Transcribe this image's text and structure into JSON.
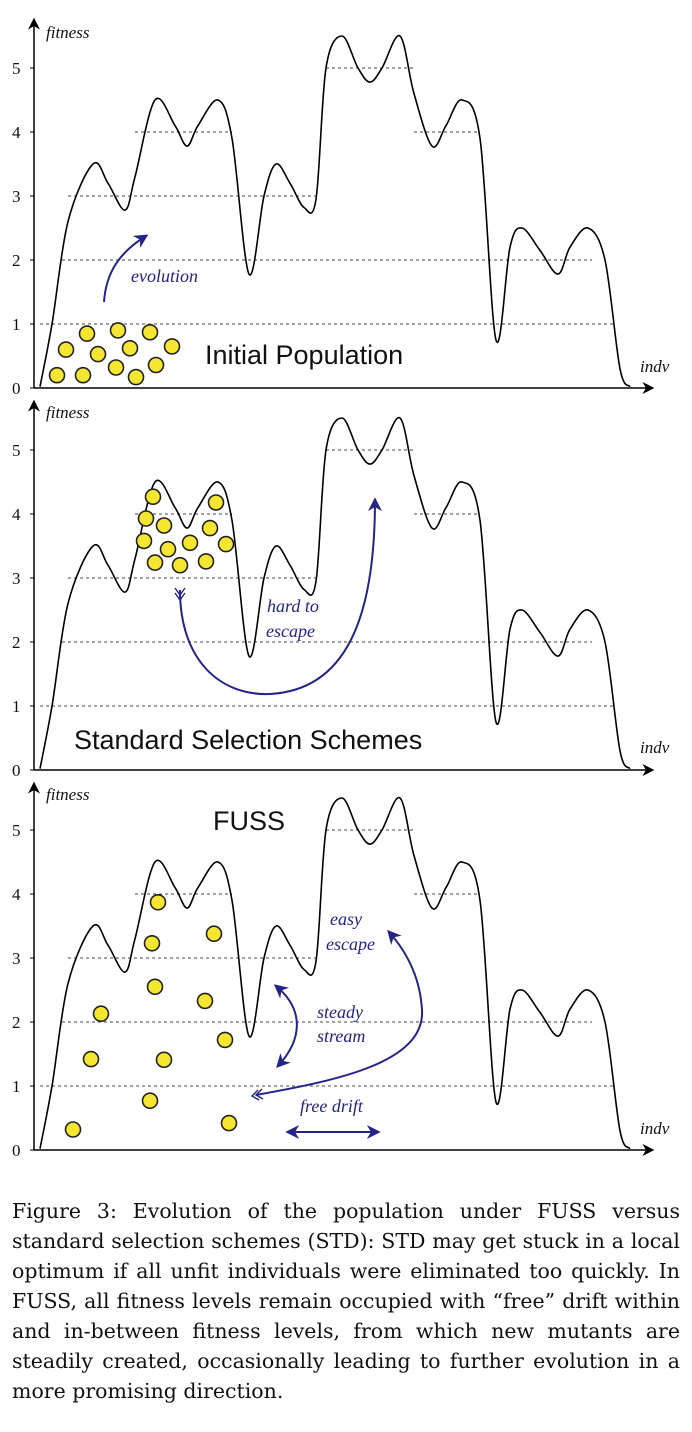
{
  "colors": {
    "individual_fill": "#f5e631",
    "individual_stroke": "#222222",
    "arrow": "#23238a",
    "curve": "#000000",
    "grid": "#444444"
  },
  "axes": {
    "y_label": "fitness",
    "x_label": "indv",
    "y_ticks": [
      "0",
      "1",
      "2",
      "3",
      "4",
      "5"
    ]
  },
  "panels": [
    {
      "title": "Initial Population",
      "annotations": [
        "evolution"
      ]
    },
    {
      "title": "Standard Selection Schemes",
      "annotations": [
        "hard to",
        "escape"
      ]
    },
    {
      "title": "FUSS",
      "annotations": [
        "easy",
        "escape",
        "steady",
        "stream",
        "free drift"
      ]
    }
  ],
  "caption": "Figure 3: Evolution of the population under FUSS versus standard selection schemes (STD): STD may get stuck in a local optimum if all unfit individuals were eliminated too quickly. In FUSS, all fitness levels remain occupied with “free” drift within and in-between fitness levels, from which new mutants are steadily created, occasionally leading to further evolution in a more promising direction."
}
